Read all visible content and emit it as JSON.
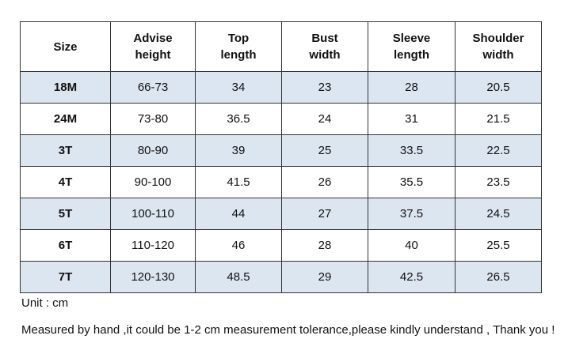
{
  "table": {
    "header": [
      [
        "Size"
      ],
      [
        "Advise",
        "height"
      ],
      [
        "Top",
        "length"
      ],
      [
        "Bust",
        "width"
      ],
      [
        "Sleeve",
        "length"
      ],
      [
        "Shoulder",
        "width"
      ]
    ],
    "rows": [
      [
        "18M",
        "66-73",
        "34",
        "23",
        "28",
        "20.5"
      ],
      [
        "24M",
        "73-80",
        "36.5",
        "24",
        "31",
        "21.5"
      ],
      [
        "3T",
        "80-90",
        "39",
        "25",
        "33.5",
        "22.5"
      ],
      [
        "4T",
        "90-100",
        "41.5",
        "26",
        "35.5",
        "23.5"
      ],
      [
        "5T",
        "100-110",
        "44",
        "27",
        "37.5",
        "24.5"
      ],
      [
        "6T",
        "110-120",
        "46",
        "28",
        "40",
        "25.5"
      ],
      [
        "7T",
        "120-130",
        "48.5",
        "29",
        "42.5",
        "26.5"
      ]
    ]
  },
  "notes": {
    "unit": "Unit : cm",
    "disclaimer": "Measured by hand ,it could be 1-2 cm measurement tolerance,please kindly understand , Thank you !"
  }
}
